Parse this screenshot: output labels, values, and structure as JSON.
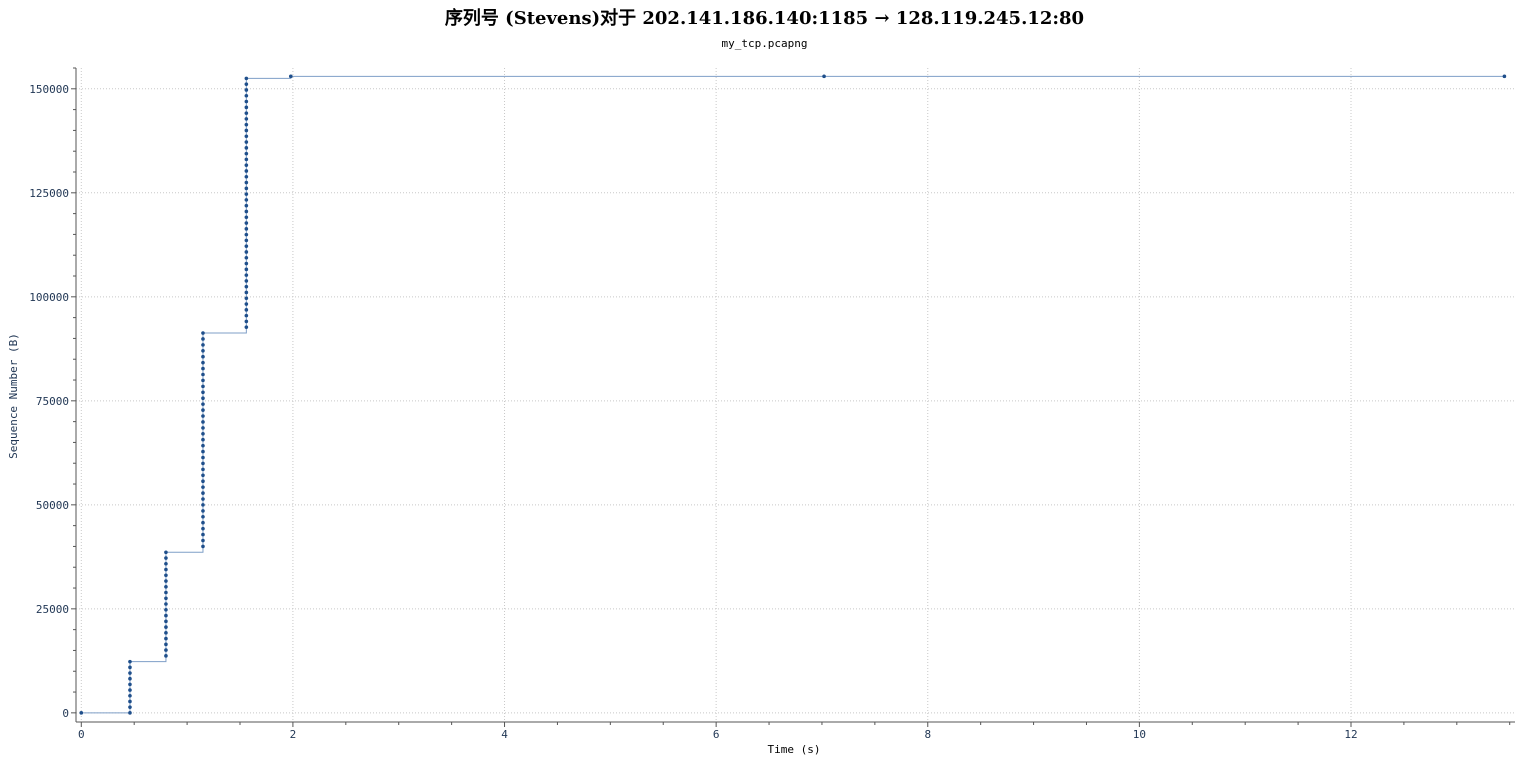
{
  "header": {
    "title": "序列号 (Stevens)对于 202.141.186.140:1185 → 128.119.245.12:80",
    "subtitle": "my_tcp.pcapng"
  },
  "colors": {
    "series": "#1f4f8b",
    "line": "#7f9fc7",
    "axis": "#555555",
    "grid": "#c8c8c8",
    "tick_label": "#1f3553"
  },
  "chart_data": {
    "type": "scatter",
    "title": "序列号 (Stevens)对于 202.141.186.140:1185 → 128.119.245.12:80",
    "subtitle": "my_tcp.pcapng",
    "xlabel": "Time (s)",
    "ylabel": "Sequence Number (B)",
    "xlim": [
      -0.05,
      13.55
    ],
    "ylim": [
      -2200,
      155000
    ],
    "x_ticks": [
      0,
      2,
      4,
      6,
      8,
      10,
      12
    ],
    "x_tick_labels": [
      "0",
      "2",
      "4",
      "6",
      "8",
      "10",
      "12"
    ],
    "y_ticks": [
      0,
      25000,
      50000,
      75000,
      100000,
      125000,
      150000
    ],
    "y_tick_labels": [
      "0",
      "25000",
      "50000",
      "75000",
      "100000",
      "125000",
      "150000"
    ],
    "grid": true,
    "step_line": true,
    "series": [
      {
        "bursts": [
          {
            "t": 0.0,
            "seq_from": 0,
            "seq_to": 0,
            "count": 1
          },
          {
            "t": 0.46,
            "seq_from": 1,
            "seq_to": 12300,
            "count": 10
          },
          {
            "t": 0.8,
            "seq_from": 13700,
            "seq_to": 38600,
            "count": 19
          },
          {
            "t": 1.15,
            "seq_from": 40000,
            "seq_to": 91300,
            "count": 37
          },
          {
            "t": 1.56,
            "seq_from": 92700,
            "seq_to": 152500,
            "count": 44
          },
          {
            "t": 1.98,
            "seq_from": 153000,
            "seq_to": 153000,
            "count": 1
          },
          {
            "t": 7.02,
            "seq_from": 153000,
            "seq_to": 153000,
            "count": 1
          },
          {
            "t": 13.45,
            "seq_from": 153000,
            "seq_to": 153000,
            "count": 1
          }
        ]
      }
    ]
  }
}
